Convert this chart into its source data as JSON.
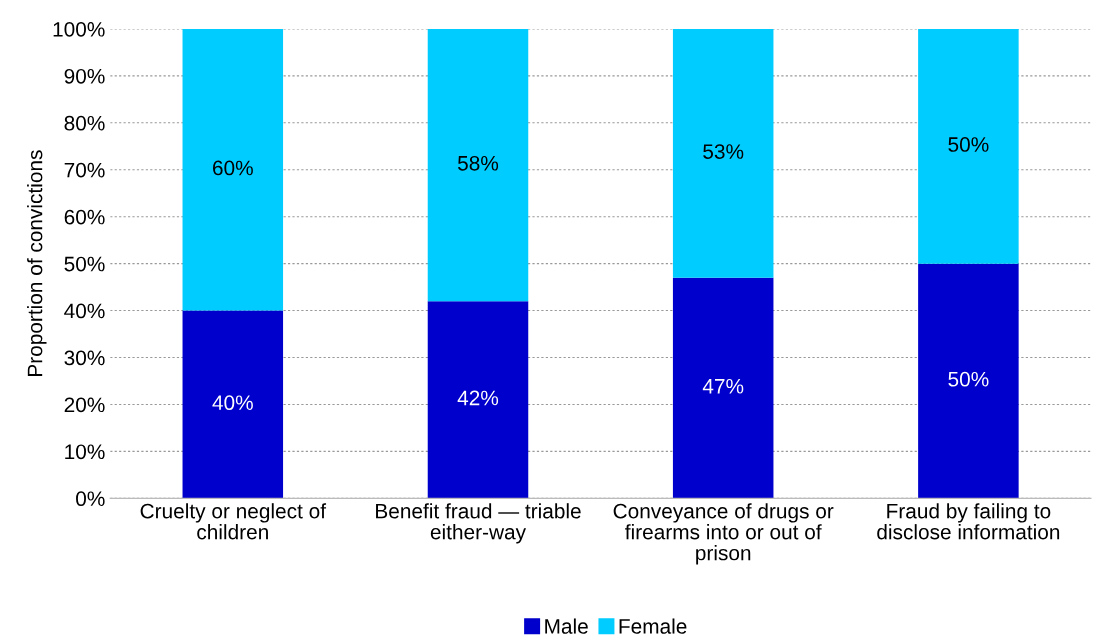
{
  "chart_data": {
    "type": "bar",
    "stacked": true,
    "ylabel": "Proportion of convictions",
    "categories": [
      "Cruelty or neglect of children",
      "Benefit fraud — triable either-way",
      "Conveyance of drugs or firearms into or out of prison",
      "Fraud by failing to disclose information"
    ],
    "series": [
      {
        "name": "Male",
        "color": "#0000cc",
        "values": [
          40,
          42,
          47,
          50
        ],
        "value_labels": [
          "40%",
          "42%",
          "47%",
          "50%"
        ]
      },
      {
        "name": "Female",
        "color": "#00ccff",
        "values": [
          60,
          58,
          53,
          50
        ],
        "value_labels": [
          "60%",
          "58%",
          "53%",
          "50%"
        ]
      }
    ],
    "ylim": [
      0,
      100
    ],
    "yticks": [
      {
        "value": 0,
        "label": "0%"
      },
      {
        "value": 10,
        "label": "10%"
      },
      {
        "value": 20,
        "label": "20%"
      },
      {
        "value": 30,
        "label": "30%"
      },
      {
        "value": 40,
        "label": "40%"
      },
      {
        "value": 50,
        "label": "50%"
      },
      {
        "value": 60,
        "label": "60%"
      },
      {
        "value": 70,
        "label": "70%"
      },
      {
        "value": 80,
        "label": "80%"
      },
      {
        "value": 90,
        "label": "90%"
      },
      {
        "value": 100,
        "label": "100%"
      }
    ],
    "grid": "y",
    "legend": "bottom"
  }
}
